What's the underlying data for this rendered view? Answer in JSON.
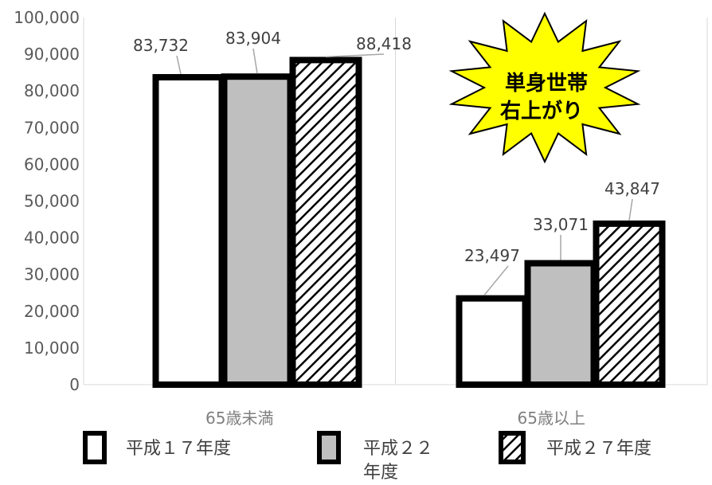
{
  "chart_data": {
    "type": "bar",
    "categories": [
      "65歳未満",
      "65歳以上"
    ],
    "series": [
      {
        "name": "平成１７年度",
        "values": [
          83732,
          23497
        ],
        "labels": [
          "83,732",
          "23,497"
        ]
      },
      {
        "name": "平成２２年度",
        "values": [
          83904,
          33071
        ],
        "labels": [
          "83,904",
          "33,071"
        ]
      },
      {
        "name": "平成２７年度",
        "values": [
          88418,
          43847
        ],
        "labels": [
          "88,418",
          "43,847"
        ]
      }
    ],
    "yticks": [
      "0",
      "10,000",
      "20,000",
      "30,000",
      "40,000",
      "50,000",
      "60,000",
      "70,000",
      "80,000",
      "90,000",
      "100,000"
    ],
    "ylim": [
      0,
      100000
    ],
    "grid": "vertical-separators",
    "legend_position": "bottom",
    "colors": {
      "series1": "#ffffff",
      "series2": "#bfbfbf",
      "series3": "hatched-black",
      "edge": "#000000",
      "burst": "#ffff00"
    }
  },
  "annotation": {
    "line1": "単身世帯",
    "line2": "右上がり"
  },
  "legend": {
    "item1": "平成１７年度",
    "item2_line1": "平成２２",
    "item2_line2": "年度",
    "item3": "平成２７年度"
  }
}
